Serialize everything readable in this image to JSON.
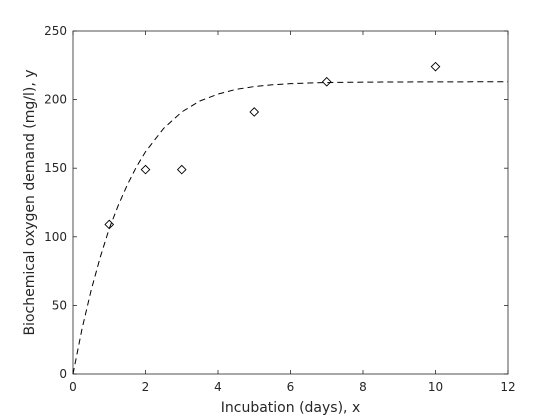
{
  "chart_data": {
    "type": "scatter",
    "title": "",
    "xlabel": "Incubation (days), x",
    "ylabel": "Biochemical oxygen demand (mg/l), y",
    "xlim": [
      0,
      12
    ],
    "ylim": [
      0,
      250
    ],
    "grid": false,
    "x_ticks": [
      "0",
      "2",
      "4",
      "6",
      "8",
      "10",
      "12"
    ],
    "y_ticks": [
      "0",
      "50",
      "100",
      "150",
      "200",
      "250"
    ],
    "series": [
      {
        "kind": "scatter",
        "marker": "diamond-open",
        "color": "#000000",
        "x": [
          1,
          2,
          3,
          5,
          7,
          10
        ],
        "y": [
          109,
          149,
          149,
          191,
          213,
          224
        ]
      },
      {
        "kind": "line",
        "line_style": "dashed",
        "color": "#000000",
        "x": [
          0,
          0.25,
          0.5,
          0.75,
          1,
          1.25,
          1.5,
          1.75,
          2,
          2.5,
          3,
          3.5,
          4,
          4.5,
          5,
          5.5,
          6,
          6.5,
          7,
          7.5,
          8,
          8.5,
          9,
          9.5,
          10,
          10.5,
          11,
          11.5,
          12
        ],
        "y": [
          0,
          33,
          61,
          85,
          106,
          123,
          138,
          151,
          162,
          179,
          191,
          199,
          204,
          207.5,
          209.5,
          210.8,
          211.6,
          212.1,
          212.4,
          212.6,
          212.7,
          212.8,
          212.85,
          212.9,
          212.93,
          212.95,
          212.97,
          212.98,
          213
        ]
      }
    ]
  }
}
